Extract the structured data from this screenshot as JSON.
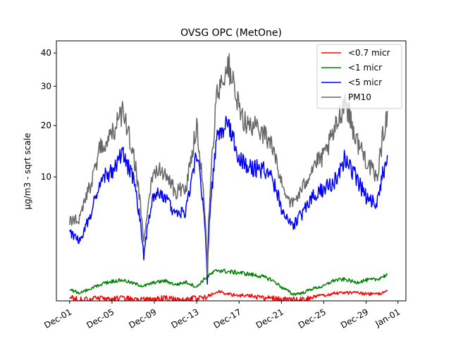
{
  "chart_data": {
    "type": "line",
    "title": "OVSG OPC (MetOne)",
    "xlabel": "",
    "ylabel": "µg/m3 - sqrt scale",
    "y_scale": "sqrt",
    "ylim": [
      0,
      44
    ],
    "xlim": [
      "2023-11-29T18:00",
      "2024-01-01T18:00"
    ],
    "grid": false,
    "legend_position": "upper right",
    "x_ticks": [
      {
        "date": "2023-12-01",
        "label": "Dec-01"
      },
      {
        "date": "2023-12-05",
        "label": "Dec-05"
      },
      {
        "date": "2023-12-09",
        "label": "Dec-09"
      },
      {
        "date": "2023-12-13",
        "label": "Dec-13"
      },
      {
        "date": "2023-12-17",
        "label": "Dec-17"
      },
      {
        "date": "2023-12-21",
        "label": "Dec-21"
      },
      {
        "date": "2023-12-25",
        "label": "Dec-25"
      },
      {
        "date": "2023-12-29",
        "label": "Dec-29"
      },
      {
        "date": "2024-01-01",
        "label": "Jan-01"
      }
    ],
    "y_ticks": [
      {
        "value": 10,
        "label": "10"
      },
      {
        "value": 20,
        "label": "20"
      },
      {
        "value": 30,
        "label": "30"
      },
      {
        "value": 40,
        "label": "40"
      }
    ],
    "series": [
      {
        "name": "<0.7 micr",
        "color": "#ff0000",
        "x": [
          "2023-12-01",
          "2023-12-02",
          "2023-12-03",
          "2023-12-04",
          "2023-12-05",
          "2023-12-06",
          "2023-12-07",
          "2023-12-08",
          "2023-12-09",
          "2023-12-10",
          "2023-12-11",
          "2023-12-12",
          "2023-12-13",
          "2023-12-14",
          "2023-12-15",
          "2023-12-16",
          "2023-12-17",
          "2023-12-18",
          "2023-12-19",
          "2023-12-20",
          "2023-12-21",
          "2023-12-22",
          "2023-12-23",
          "2023-12-24",
          "2023-12-25",
          "2023-12-26",
          "2023-12-27",
          "2023-12-28",
          "2023-12-29",
          "2023-12-30",
          "2023-12-31"
        ],
        "y": [
          0.01,
          0.0,
          0.0,
          0.01,
          0.0,
          0.01,
          0.0,
          0.0,
          0.0,
          0.01,
          0.0,
          0.0,
          0.01,
          0.01,
          0.06,
          0.03,
          0.02,
          0.02,
          0.01,
          0.01,
          0.0,
          0.0,
          0.0,
          0.01,
          0.02,
          0.04,
          0.04,
          0.05,
          0.03,
          0.03,
          0.06
        ]
      },
      {
        "name": "<1 micr",
        "color": "#008000",
        "x": [
          "2023-12-01",
          "2023-12-02",
          "2023-12-03",
          "2023-12-04",
          "2023-12-05",
          "2023-12-06",
          "2023-12-07",
          "2023-12-08",
          "2023-12-09",
          "2023-12-10",
          "2023-12-11",
          "2023-12-12",
          "2023-12-13",
          "2023-12-14",
          "2023-12-15",
          "2023-12-16",
          "2023-12-17",
          "2023-12-18",
          "2023-12-19",
          "2023-12-20",
          "2023-12-21",
          "2023-12-22",
          "2023-12-23",
          "2023-12-24",
          "2023-12-25",
          "2023-12-26",
          "2023-12-27",
          "2023-12-28",
          "2023-12-29",
          "2023-12-30",
          "2023-12-31"
        ],
        "y": [
          0.08,
          0.04,
          0.1,
          0.18,
          0.25,
          0.28,
          0.2,
          0.14,
          0.22,
          0.26,
          0.17,
          0.23,
          0.12,
          0.38,
          0.62,
          0.55,
          0.52,
          0.46,
          0.4,
          0.3,
          0.12,
          0.03,
          0.04,
          0.1,
          0.14,
          0.28,
          0.3,
          0.22,
          0.28,
          0.3,
          0.45
        ]
      },
      {
        "name": "<5 micr",
        "color": "#0000ff",
        "x": [
          "2023-12-01",
          "2023-12-02",
          "2023-12-03",
          "2023-12-04",
          "2023-12-05",
          "2023-12-06",
          "2023-12-07",
          "2023-12-08",
          "2023-12-09",
          "2023-12-10",
          "2023-12-11",
          "2023-12-12",
          "2023-12-13",
          "2023-12-14",
          "2023-12-15",
          "2023-12-16",
          "2023-12-17",
          "2023-12-18",
          "2023-12-19",
          "2023-12-20",
          "2023-12-21",
          "2023-12-22",
          "2023-12-23",
          "2023-12-24",
          "2023-12-25",
          "2023-12-26",
          "2023-12-27",
          "2023-12-28",
          "2023-12-29",
          "2023-12-30",
          "2023-12-31"
        ],
        "y": [
          3.0,
          2.4,
          4.8,
          9.8,
          10.8,
          14.5,
          9.6,
          1.2,
          7.5,
          6.8,
          4.8,
          5.2,
          13.9,
          0.2,
          18.5,
          20.4,
          13.0,
          11.5,
          11.5,
          10.2,
          5.6,
          3.6,
          5.0,
          7.2,
          8.2,
          9.2,
          13.5,
          10.0,
          7.0,
          6.0,
          13.8
        ]
      },
      {
        "name": "PM10",
        "color": "#666666",
        "x": [
          "2023-12-01",
          "2023-12-02",
          "2023-12-03",
          "2023-12-04",
          "2023-12-05",
          "2023-12-06",
          "2023-12-07",
          "2023-12-08",
          "2023-12-09",
          "2023-12-10",
          "2023-12-11",
          "2023-12-12",
          "2023-12-13",
          "2023-12-14",
          "2023-12-15",
          "2023-12-16",
          "2023-12-17",
          "2023-12-18",
          "2023-12-19",
          "2023-12-20",
          "2023-12-21",
          "2023-12-22",
          "2023-12-23",
          "2023-12-24",
          "2023-12-25",
          "2023-12-26",
          "2023-12-27",
          "2023-12-28",
          "2023-12-29",
          "2023-12-30",
          "2023-12-31"
        ],
        "y": [
          4.2,
          4.5,
          8.8,
          16.0,
          17.8,
          23.0,
          14.5,
          2.0,
          11.5,
          10.6,
          7.8,
          8.2,
          20.0,
          0.4,
          29.5,
          36.0,
          23.5,
          19.5,
          19.5,
          16.2,
          9.0,
          6.0,
          8.2,
          12.0,
          13.5,
          18.5,
          26.5,
          17.2,
          13.0,
          9.5,
          23.5
        ]
      }
    ]
  }
}
